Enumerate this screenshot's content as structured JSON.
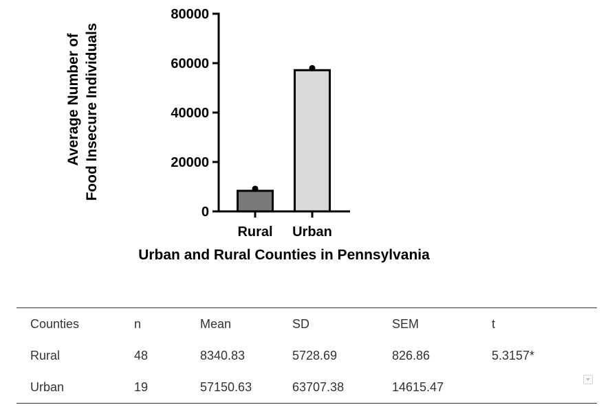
{
  "chart_data": {
    "type": "bar",
    "title": "",
    "xlabel": "Urban and Rural Counties in Pennsylvania",
    "ylabel_lines": [
      "Average Number of",
      "Food Insecure Individuals"
    ],
    "categories": [
      "Rural",
      "Urban"
    ],
    "values": [
      8340.83,
      57150.63
    ],
    "points": [
      8340.83,
      57150.63
    ],
    "bar_colors": [
      "#7a7a7a",
      "#d9d9d9"
    ],
    "ylim": [
      0,
      80000
    ],
    "yticks": [
      0,
      20000,
      40000,
      60000,
      80000
    ],
    "grid": false,
    "legend": "none"
  },
  "table": {
    "headers": [
      "Counties",
      "n",
      "Mean",
      "SD",
      "SEM",
      "t"
    ],
    "rows": [
      [
        "Rural",
        "48",
        "8340.83",
        "5728.69",
        "826.86",
        "5.3157*"
      ],
      [
        "Urban",
        "19",
        "57150.63",
        "63707.38",
        "14615.47",
        ""
      ]
    ]
  },
  "icons": {
    "table_menu": "chevron-down-icon"
  }
}
